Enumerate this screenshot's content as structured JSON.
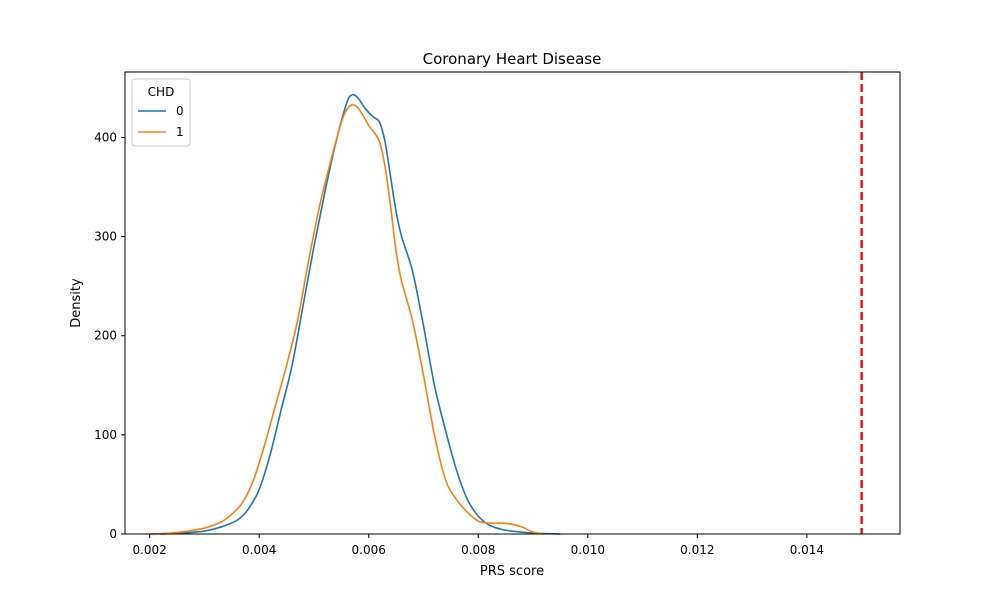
{
  "chart_data": {
    "type": "line",
    "title": "Coronary Heart Disease",
    "xlabel": "PRS score",
    "ylabel": "Density",
    "xlim": [
      0.00155,
      0.0157
    ],
    "ylim": [
      0,
      466
    ],
    "x_ticks": [
      0.002,
      0.004,
      0.006,
      0.008,
      0.01,
      0.012,
      0.014
    ],
    "x_tick_labels": [
      "0.002",
      "0.004",
      "0.006",
      "0.008",
      "0.010",
      "0.012",
      "0.014"
    ],
    "y_ticks": [
      0,
      100,
      200,
      300,
      400
    ],
    "y_tick_labels": [
      "0",
      "100",
      "200",
      "300",
      "400"
    ],
    "grid": false,
    "legend": {
      "title": "CHD",
      "placement": "top-left"
    },
    "series": [
      {
        "name": "0",
        "color": "#1f77b4",
        "points": [
          [
            0.0022,
            0
          ],
          [
            0.0026,
            1
          ],
          [
            0.003,
            3
          ],
          [
            0.0033,
            7
          ],
          [
            0.0036,
            14
          ],
          [
            0.0038,
            25
          ],
          [
            0.004,
            45
          ],
          [
            0.0042,
            80
          ],
          [
            0.0044,
            125
          ],
          [
            0.0046,
            170
          ],
          [
            0.0048,
            230
          ],
          [
            0.005,
            290
          ],
          [
            0.0052,
            345
          ],
          [
            0.0054,
            395
          ],
          [
            0.0056,
            435
          ],
          [
            0.0057,
            443
          ],
          [
            0.0058,
            440
          ],
          [
            0.0059,
            432
          ],
          [
            0.006,
            425
          ],
          [
            0.0061,
            420
          ],
          [
            0.0062,
            415
          ],
          [
            0.0063,
            395
          ],
          [
            0.0064,
            360
          ],
          [
            0.0065,
            325
          ],
          [
            0.0066,
            300
          ],
          [
            0.0068,
            265
          ],
          [
            0.007,
            210
          ],
          [
            0.0072,
            150
          ],
          [
            0.0074,
            105
          ],
          [
            0.0076,
            65
          ],
          [
            0.0078,
            35
          ],
          [
            0.008,
            18
          ],
          [
            0.0082,
            9
          ],
          [
            0.0084,
            5
          ],
          [
            0.0086,
            3
          ],
          [
            0.009,
            1
          ],
          [
            0.0095,
            0
          ]
        ]
      },
      {
        "name": "1",
        "color": "#ff7f0e",
        "points": [
          [
            0.002,
            0
          ],
          [
            0.0024,
            1
          ],
          [
            0.0027,
            3
          ],
          [
            0.003,
            6
          ],
          [
            0.0033,
            12
          ],
          [
            0.0035,
            20
          ],
          [
            0.0037,
            32
          ],
          [
            0.0039,
            55
          ],
          [
            0.0041,
            90
          ],
          [
            0.0043,
            130
          ],
          [
            0.0045,
            170
          ],
          [
            0.0047,
            215
          ],
          [
            0.0049,
            275
          ],
          [
            0.0051,
            330
          ],
          [
            0.0053,
            375
          ],
          [
            0.0055,
            415
          ],
          [
            0.0056,
            428
          ],
          [
            0.0057,
            433
          ],
          [
            0.0058,
            430
          ],
          [
            0.0059,
            422
          ],
          [
            0.006,
            412
          ],
          [
            0.0061,
            405
          ],
          [
            0.0062,
            395
          ],
          [
            0.0063,
            370
          ],
          [
            0.0064,
            330
          ],
          [
            0.0065,
            285
          ],
          [
            0.0066,
            255
          ],
          [
            0.0068,
            215
          ],
          [
            0.007,
            160
          ],
          [
            0.0072,
            100
          ],
          [
            0.0074,
            55
          ],
          [
            0.0076,
            35
          ],
          [
            0.0078,
            22
          ],
          [
            0.008,
            13
          ],
          [
            0.0082,
            11
          ],
          [
            0.0084,
            11
          ],
          [
            0.0086,
            10
          ],
          [
            0.0088,
            7
          ],
          [
            0.009,
            2
          ],
          [
            0.0092,
            0
          ]
        ]
      }
    ],
    "reference_line": {
      "x": 0.015,
      "color": "#ff0000",
      "style": "dashed"
    }
  }
}
